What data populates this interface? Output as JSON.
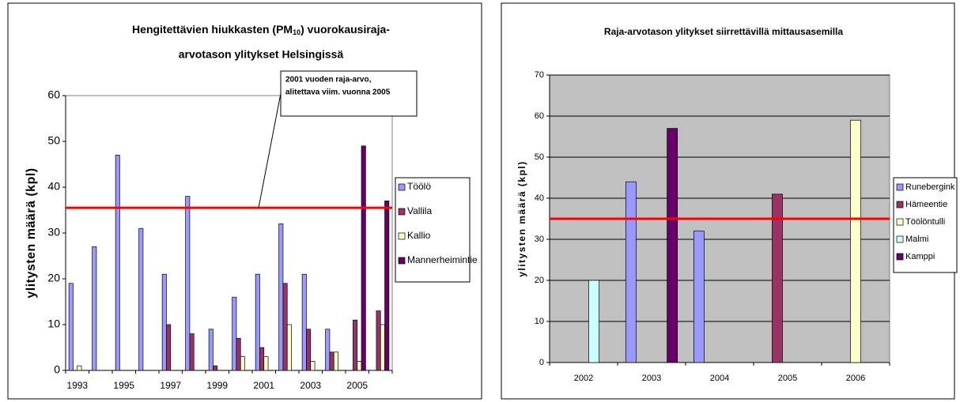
{
  "chart_data": [
    {
      "type": "bar",
      "title_parts": [
        "Hengitettävien hiukkasten (PM",
        "10",
        ") vuorokausiraja-",
        "arvotason ylitykset Helsingissä"
      ],
      "y_label": "ylitysten määrä (kpl)",
      "categories": [
        "1993",
        null,
        "1995",
        null,
        "1997",
        null,
        "1999",
        null,
        "2001",
        null,
        "2003",
        null,
        "2005",
        null
      ],
      "series": [
        {
          "name": "Töölö",
          "color": "#9999ff",
          "values": [
            19,
            27,
            47,
            31,
            21,
            38,
            9,
            16,
            21,
            32,
            21,
            9,
            null,
            null
          ]
        },
        {
          "name": "Vallila",
          "color": "#993366",
          "values": [
            null,
            null,
            null,
            null,
            10,
            8,
            1,
            7,
            5,
            19,
            9,
            4,
            11,
            13
          ]
        },
        {
          "name": "Kallio",
          "color": "#ffffcc",
          "values": [
            1,
            null,
            null,
            null,
            null,
            null,
            null,
            3,
            3,
            10,
            2,
            4,
            2,
            10
          ]
        },
        {
          "name": "Mannerheimintie",
          "color": "#660066",
          "values": [
            null,
            null,
            null,
            null,
            null,
            null,
            null,
            null,
            null,
            null,
            null,
            null,
            49,
            37
          ]
        }
      ],
      "ylim": [
        0,
        60
      ],
      "yticks": [
        0,
        10,
        20,
        30,
        40,
        50,
        60
      ],
      "grid": false,
      "reference_line": {
        "value": 35.5,
        "color": "#ff0000"
      },
      "annotation": [
        "2001 vuoden raja-arvo,",
        "alitettava viim. vuonna 2005"
      ],
      "legend": "right",
      "background": "#ffffff"
    },
    {
      "type": "bar",
      "title_parts": [
        "Raja-arvotason ylitykset siirrettävillä mittausasemilla"
      ],
      "y_label": "ylitysten määrä (kpl)",
      "categories": [
        "2002",
        "2003",
        "2004",
        "2005",
        "2006"
      ],
      "series": [
        {
          "name": "Runebergink",
          "color": "#9999ff",
          "values": [
            null,
            44,
            32,
            null,
            null
          ]
        },
        {
          "name": "Hämeentie",
          "color": "#993366",
          "values": [
            null,
            null,
            null,
            41,
            null
          ]
        },
        {
          "name": "Töölöntulli",
          "color": "#ffffcc",
          "values": [
            null,
            null,
            null,
            null,
            59
          ]
        },
        {
          "name": "Malmi",
          "color": "#ccffff",
          "values": [
            20,
            null,
            null,
            null,
            null
          ]
        },
        {
          "name": "Kamppi",
          "color": "#660066",
          "values": [
            null,
            57,
            null,
            null,
            null
          ]
        }
      ],
      "ylim": [
        0,
        70
      ],
      "yticks": [
        0,
        10,
        20,
        30,
        40,
        50,
        60,
        70
      ],
      "grid": true,
      "reference_line": {
        "value": 35,
        "color": "#ff0000"
      },
      "legend": "right",
      "background": "#c0c0c0"
    }
  ]
}
